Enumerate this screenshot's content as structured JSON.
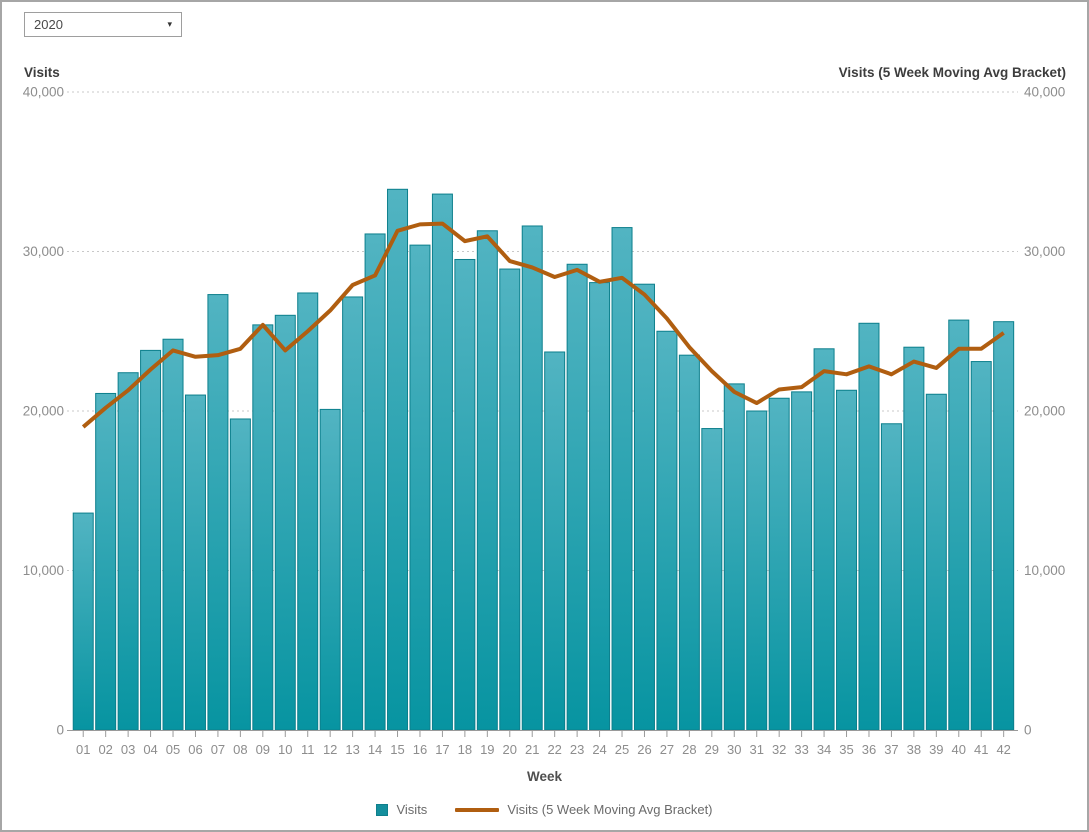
{
  "controls": {
    "year_select": {
      "value": "2020",
      "caret_icon": "▾"
    }
  },
  "chart_data": {
    "type": "bar",
    "subtype": "bar-with-line-overlay",
    "x_axis": {
      "title": "Week",
      "categories": [
        "01",
        "02",
        "03",
        "04",
        "05",
        "06",
        "07",
        "08",
        "09",
        "10",
        "11",
        "12",
        "13",
        "14",
        "15",
        "16",
        "17",
        "18",
        "19",
        "20",
        "21",
        "22",
        "23",
        "24",
        "25",
        "26",
        "27",
        "28",
        "29",
        "30",
        "31",
        "32",
        "33",
        "34",
        "35",
        "36",
        "37",
        "38",
        "39",
        "40",
        "41",
        "42"
      ]
    },
    "y_axis_left": {
      "title": "Visits",
      "min": 0,
      "max": 40000,
      "ticks": [
        0,
        10000,
        20000,
        30000,
        40000
      ],
      "tick_labels": [
        "0",
        "10,000",
        "20,000",
        "30,000",
        "40,000"
      ]
    },
    "y_axis_right": {
      "title": "Visits (5 Week Moving Avg Bracket)",
      "min": 0,
      "max": 40000,
      "ticks": [
        0,
        10000,
        20000,
        30000,
        40000
      ],
      "tick_labels": [
        "0",
        "10,000",
        "20,000",
        "30,000",
        "40,000"
      ]
    },
    "grid": {
      "horizontal": true,
      "style": "dotted",
      "color": "#c8c8c8"
    },
    "series": [
      {
        "name": "Visits",
        "type": "bar",
        "color_top": "#52b4c2",
        "color_bottom": "#0794a1",
        "border_color": "#0c7f8c",
        "values": [
          13600,
          21100,
          22400,
          23800,
          24500,
          21000,
          27300,
          19500,
          25400,
          26000,
          27400,
          20100,
          27150,
          31100,
          33900,
          30400,
          33600,
          29500,
          31300,
          28900,
          31600,
          23700,
          29200,
          28050,
          31500,
          27950,
          25000,
          23500,
          18900,
          21700,
          20000,
          20800,
          21200,
          23900,
          21300,
          25500,
          19200,
          24000,
          21050,
          25700,
          23100,
          25600
        ]
      },
      {
        "name": "Visits (5 Week Moving Avg Bracket)",
        "type": "line",
        "color": "#b05e10",
        "values": [
          19000,
          20200,
          21300,
          22600,
          23800,
          23400,
          23500,
          23900,
          25400,
          23800,
          25000,
          26300,
          27900,
          28500,
          31300,
          31700,
          31750,
          30650,
          30950,
          29400,
          29000,
          28400,
          28850,
          28100,
          28350,
          27300,
          25800,
          24000,
          22500,
          21200,
          20500,
          21350,
          21500,
          22500,
          22300,
          22800,
          22300,
          23100,
          22700,
          23900,
          23900,
          24900
        ]
      }
    ],
    "legend": {
      "position": "bottom",
      "entries": [
        {
          "label": "Visits",
          "swatch": "square",
          "color": "#148f9d"
        },
        {
          "label": "Visits (5 Week Moving Avg Bracket)",
          "swatch": "line",
          "color": "#b05e10"
        }
      ]
    }
  }
}
